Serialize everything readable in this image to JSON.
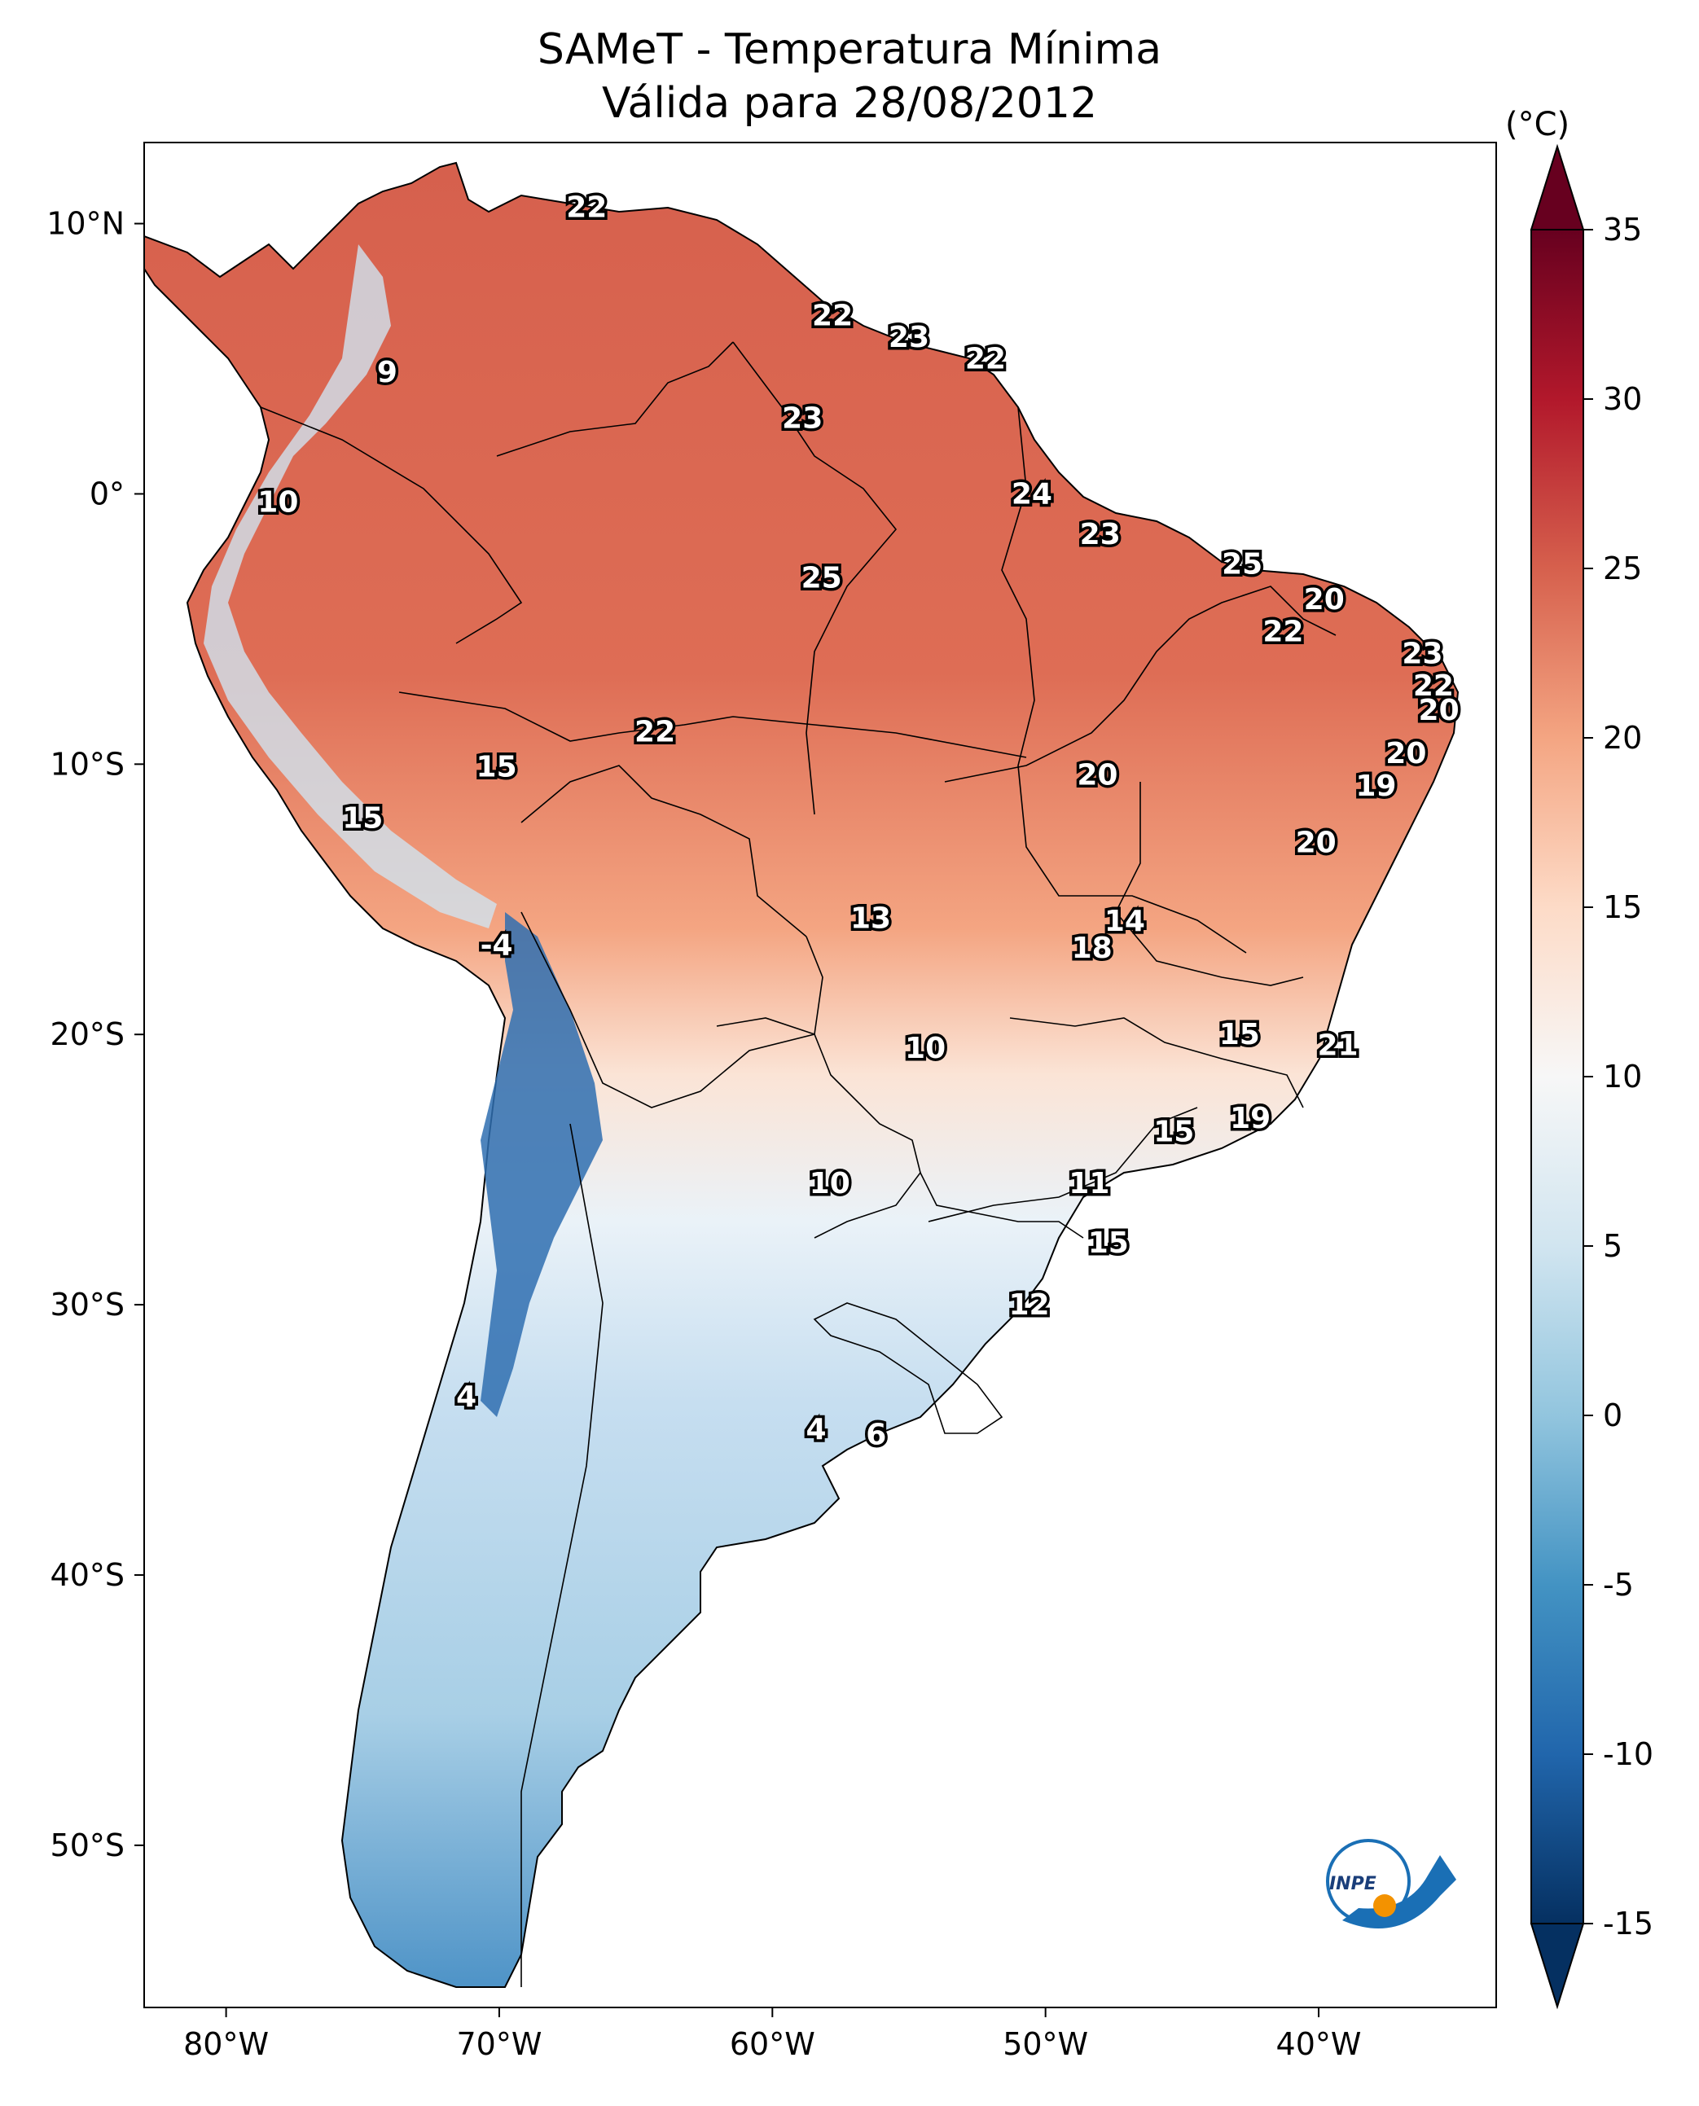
{
  "title": {
    "line1": "SAMeT - Temperatura Mínima",
    "line2": "Válida para 28/08/2012"
  },
  "map": {
    "extent": {
      "lon_min": -83,
      "lon_max": -33.5,
      "lat_min": -56,
      "lat_max": 13
    },
    "lat_ticks": [
      {
        "value": 10,
        "label": "10°N"
      },
      {
        "value": 0,
        "label": "0°"
      },
      {
        "value": -10,
        "label": "10°S"
      },
      {
        "value": -20,
        "label": "20°S"
      },
      {
        "value": -30,
        "label": "30°S"
      },
      {
        "value": -40,
        "label": "40°S"
      },
      {
        "value": -50,
        "label": "50°S"
      }
    ],
    "lon_ticks": [
      {
        "value": -80,
        "label": "80°W"
      },
      {
        "value": -70,
        "label": "70°W"
      },
      {
        "value": -60,
        "label": "60°W"
      },
      {
        "value": -50,
        "label": "50°W"
      },
      {
        "value": -40,
        "label": "40°W"
      }
    ],
    "point_labels": [
      {
        "lon": -66.8,
        "lat": 10.6,
        "value": "22"
      },
      {
        "lon": -74.1,
        "lat": 4.5,
        "value": "9"
      },
      {
        "lon": -57.8,
        "lat": 6.6,
        "value": "22"
      },
      {
        "lon": -55.0,
        "lat": 5.8,
        "value": "23"
      },
      {
        "lon": -52.2,
        "lat": 5.0,
        "value": "22"
      },
      {
        "lon": -58.9,
        "lat": 2.8,
        "value": "23"
      },
      {
        "lon": -78.1,
        "lat": -0.3,
        "value": "10"
      },
      {
        "lon": -50.5,
        "lat": 0.0,
        "value": "24"
      },
      {
        "lon": -48.0,
        "lat": -1.5,
        "value": "23"
      },
      {
        "lon": -58.2,
        "lat": -3.1,
        "value": "25"
      },
      {
        "lon": -42.8,
        "lat": -2.6,
        "value": "25"
      },
      {
        "lon": -39.8,
        "lat": -3.9,
        "value": "20"
      },
      {
        "lon": -41.3,
        "lat": -5.1,
        "value": "22"
      },
      {
        "lon": -36.2,
        "lat": -5.9,
        "value": "23"
      },
      {
        "lon": -35.8,
        "lat": -7.1,
        "value": "22"
      },
      {
        "lon": -35.6,
        "lat": -8.0,
        "value": "20"
      },
      {
        "lon": -64.3,
        "lat": -8.8,
        "value": "22"
      },
      {
        "lon": -36.8,
        "lat": -9.6,
        "value": "20"
      },
      {
        "lon": -70.1,
        "lat": -10.1,
        "value": "15"
      },
      {
        "lon": -48.1,
        "lat": -10.4,
        "value": "20"
      },
      {
        "lon": -37.9,
        "lat": -10.8,
        "value": "19"
      },
      {
        "lon": -40.1,
        "lat": -12.9,
        "value": "20"
      },
      {
        "lon": -75.0,
        "lat": -12.0,
        "value": "15"
      },
      {
        "lon": -56.4,
        "lat": -15.7,
        "value": "13"
      },
      {
        "lon": -47.1,
        "lat": -15.8,
        "value": "14"
      },
      {
        "lon": -48.3,
        "lat": -16.8,
        "value": "18"
      },
      {
        "lon": -70.1,
        "lat": -16.7,
        "value": "-4"
      },
      {
        "lon": -42.9,
        "lat": -20.0,
        "value": "15"
      },
      {
        "lon": -39.3,
        "lat": -20.4,
        "value": "21"
      },
      {
        "lon": -54.4,
        "lat": -20.5,
        "value": "10"
      },
      {
        "lon": -42.5,
        "lat": -23.1,
        "value": "19"
      },
      {
        "lon": -45.3,
        "lat": -23.6,
        "value": "15"
      },
      {
        "lon": -57.9,
        "lat": -25.5,
        "value": "10"
      },
      {
        "lon": -48.4,
        "lat": -25.5,
        "value": "11"
      },
      {
        "lon": -47.7,
        "lat": -27.7,
        "value": "15"
      },
      {
        "lon": -50.6,
        "lat": -30.0,
        "value": "12"
      },
      {
        "lon": -71.2,
        "lat": -33.4,
        "value": "4"
      },
      {
        "lon": -58.4,
        "lat": -34.6,
        "value": "4"
      },
      {
        "lon": -56.2,
        "lat": -34.8,
        "value": "6"
      }
    ]
  },
  "colorbar": {
    "unit": "(°C)",
    "min": -15,
    "max": 35,
    "extend": "both",
    "ticks": [
      {
        "value": 35,
        "label": "35"
      },
      {
        "value": 30,
        "label": "30"
      },
      {
        "value": 25,
        "label": "25"
      },
      {
        "value": 20,
        "label": "20"
      },
      {
        "value": 15,
        "label": "15"
      },
      {
        "value": 10,
        "label": "10"
      },
      {
        "value": 5,
        "label": "5"
      },
      {
        "value": 0,
        "label": "0"
      },
      {
        "value": -5,
        "label": "-5"
      },
      {
        "value": -10,
        "label": "-10"
      },
      {
        "value": -15,
        "label": "-15"
      }
    ],
    "colors": [
      "#053061",
      "#2166ac",
      "#4393c3",
      "#92c5de",
      "#d1e5f0",
      "#f7f7f7",
      "#fddbc7",
      "#f4a582",
      "#d6604d",
      "#b2182b",
      "#67001f"
    ]
  },
  "logo": {
    "text": "INPE"
  }
}
